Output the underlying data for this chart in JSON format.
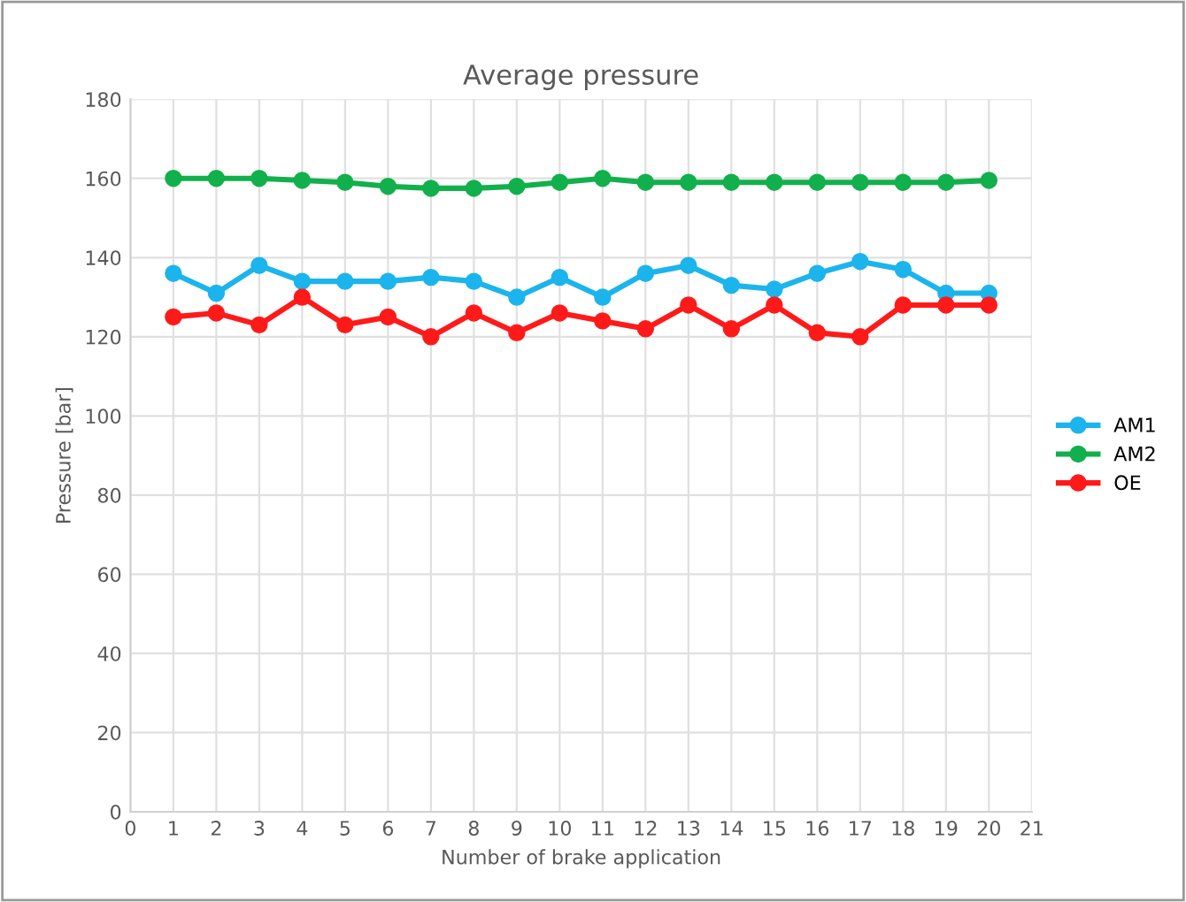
{
  "chart_data": {
    "type": "line",
    "title": "Average pressure",
    "xlabel": "Number of brake application",
    "ylabel": "Pressure [bar]",
    "x": [
      1,
      2,
      3,
      4,
      5,
      6,
      7,
      8,
      9,
      10,
      11,
      12,
      13,
      14,
      15,
      16,
      17,
      18,
      19,
      20
    ],
    "series": [
      {
        "name": "AM1",
        "color": "#1cb4ec",
        "values": [
          136,
          131,
          138,
          134,
          134,
          134,
          135,
          134,
          130,
          135,
          130,
          136,
          138,
          133,
          132,
          136,
          139,
          137,
          131,
          131
        ]
      },
      {
        "name": "AM2",
        "color": "#12b04c",
        "values": [
          160,
          160,
          160,
          159.5,
          159,
          158,
          157.5,
          157.5,
          158,
          159,
          160,
          159,
          159,
          159,
          159,
          159,
          159,
          159,
          159,
          159.5
        ]
      },
      {
        "name": "OE",
        "color": "#ff1a1a",
        "values": [
          125,
          126,
          123,
          130,
          123,
          125,
          120,
          126,
          121,
          126,
          124,
          122,
          128,
          122,
          128,
          121,
          120,
          128,
          128,
          128
        ]
      }
    ],
    "xlim": [
      0,
      21
    ],
    "xticks": [
      0,
      1,
      2,
      3,
      4,
      5,
      6,
      7,
      8,
      9,
      10,
      11,
      12,
      13,
      14,
      15,
      16,
      17,
      18,
      19,
      20,
      21
    ],
    "ylim": [
      0,
      180
    ],
    "yticks": [
      0,
      20,
      40,
      60,
      80,
      100,
      120,
      140,
      160,
      180
    ],
    "grid": true,
    "legend": "right",
    "marker": "circle",
    "line_style": "solid"
  }
}
